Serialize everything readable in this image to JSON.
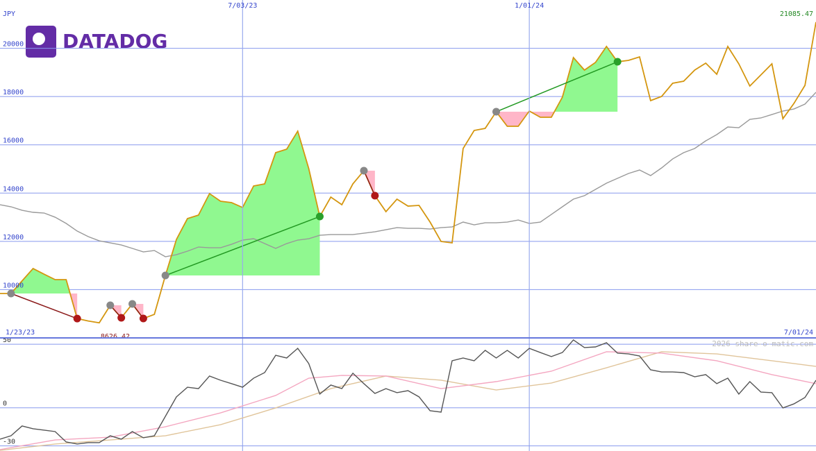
{
  "logo": "DATADOG",
  "watermark": "2026 share-o-matic.com",
  "chart_data": [
    {
      "type": "line",
      "unit_label": "JPY",
      "xlim": [
        0,
        74
      ],
      "ylim": [
        8000,
        22000
      ],
      "xticks": [
        {
          "value": 0,
          "label": "1/23/23"
        },
        {
          "value": 22,
          "label": "7/03/23"
        },
        {
          "value": 48,
          "label": "1/01/24"
        },
        {
          "value": 74,
          "label": "7/01/24"
        }
      ],
      "yticks": [
        10000,
        12000,
        14000,
        16000,
        18000,
        20000
      ],
      "grid": true,
      "series": [
        {
          "color": "#d4960f",
          "values": [
            9839,
            9840,
            10360,
            10874,
            10640,
            10414,
            10414,
            8800,
            8700,
            8626.42,
            9350,
            8833,
            9408,
            8804,
            8976,
            10586,
            12081,
            12944,
            13088,
            13979,
            13663,
            13605,
            13404,
            14295,
            14381,
            15675,
            15819,
            16566,
            15014,
            13030,
            13835,
            13519,
            14381,
            14928,
            13893,
            13231,
            13749,
            13461,
            13490,
            12800,
            11995,
            11938,
            15848,
            16595,
            16681,
            17371,
            16768,
            16768,
            17400,
            17141,
            17141,
            17975,
            19614,
            19096,
            19413,
            20074,
            19441,
            19499,
            19643,
            17831,
            18004,
            18550,
            18636,
            19096,
            19384,
            18924,
            20074,
            19355,
            18435,
            18895,
            19355,
            17084,
            17716,
            18464,
            21085.47
          ]
        },
        {
          "color": "#999999",
          "values": [
            13519,
            13433,
            13289,
            13203,
            13174,
            13001,
            12743,
            12426,
            12196,
            12024,
            11938,
            11851,
            11708,
            11564,
            11621,
            11363,
            11449,
            11593,
            11765,
            11736,
            11736,
            11880,
            12053,
            12110,
            11909,
            11708,
            11909,
            12053,
            12110,
            12254,
            12283,
            12283,
            12283,
            12340,
            12398,
            12484,
            12570,
            12541,
            12541,
            12513,
            12570,
            12599,
            12800,
            12685,
            12771,
            12771,
            12800,
            12886,
            12743,
            12800,
            13116,
            13433,
            13749,
            13893,
            14151,
            14410,
            14611,
            14813,
            14956,
            14726,
            15043,
            15416,
            15675,
            15848,
            16164,
            16423,
            16739,
            16710,
            17055,
            17113,
            17256,
            17400,
            17486,
            17688,
            18176
          ]
        }
      ],
      "trades": [
        {
          "buy": 1,
          "sell": 7
        },
        {
          "buy": 10,
          "sell": 11
        },
        {
          "buy": 12,
          "sell": 13
        },
        {
          "buy": 15,
          "sell": 29
        },
        {
          "buy": 33,
          "sell": 34
        },
        {
          "buy": 45,
          "sell": 56
        }
      ]
    },
    {
      "type": "line",
      "xlim": [
        0,
        74
      ],
      "ylim": [
        -34,
        55
      ],
      "yticks": [
        50,
        0,
        -30
      ],
      "series": [
        {
          "color": "#555555",
          "values": [
            -24.7,
            -22.0,
            -14.3,
            -16.5,
            -17.6,
            -18.7,
            -26.9,
            -28.5,
            -27.4,
            -27.4,
            -22.0,
            -24.7,
            -18.7,
            -23.6,
            -22.0,
            -6.7,
            8.6,
            16.2,
            15.1,
            25.0,
            21.7,
            19.0,
            16.2,
            23.3,
            27.7,
            41.3,
            39.2,
            46.8,
            34.8,
            10.8,
            17.9,
            15.1,
            27.2,
            19.0,
            11.3,
            15.1,
            11.9,
            13.5,
            8.6,
            -2.3,
            -3.4,
            37.0,
            39.2,
            37.0,
            45.2,
            39.2,
            45.2,
            39.2,
            46.8,
            43.5,
            40.3,
            43.5,
            53.4,
            47.4,
            47.9,
            51.2,
            43.0,
            42.4,
            40.8,
            29.9,
            28.2,
            28.2,
            27.7,
            24.4,
            26.1,
            19.0,
            23.3,
            10.8,
            20.6,
            12.4,
            11.9,
            -0.1,
            3.1,
            8.1,
            21.7
          ]
        },
        {
          "color": "#f4a6c0",
          "x": [
            0,
            5,
            10,
            15,
            20,
            25,
            28,
            31,
            35,
            40,
            45,
            50,
            55,
            60,
            65,
            70,
            74
          ],
          "values": [
            -32.9,
            -25.3,
            -23.1,
            -14.9,
            -4.0,
            9.7,
            23.3,
            25.5,
            25.0,
            15.1,
            20.6,
            28.8,
            44.1,
            43.0,
            37.0,
            26.1,
            19.0
          ]
        },
        {
          "color": "#e0c49a",
          "x": [
            0,
            5,
            10,
            15,
            20,
            25,
            30,
            35,
            40,
            45,
            50,
            55,
            60,
            65,
            70,
            74
          ],
          "values": [
            -33.5,
            -28.5,
            -25.3,
            -22.0,
            -13.3,
            -0.1,
            15.1,
            25.0,
            21.7,
            14.0,
            19.5,
            31.5,
            44.1,
            42.4,
            37.0,
            32.6
          ]
        }
      ]
    }
  ]
}
